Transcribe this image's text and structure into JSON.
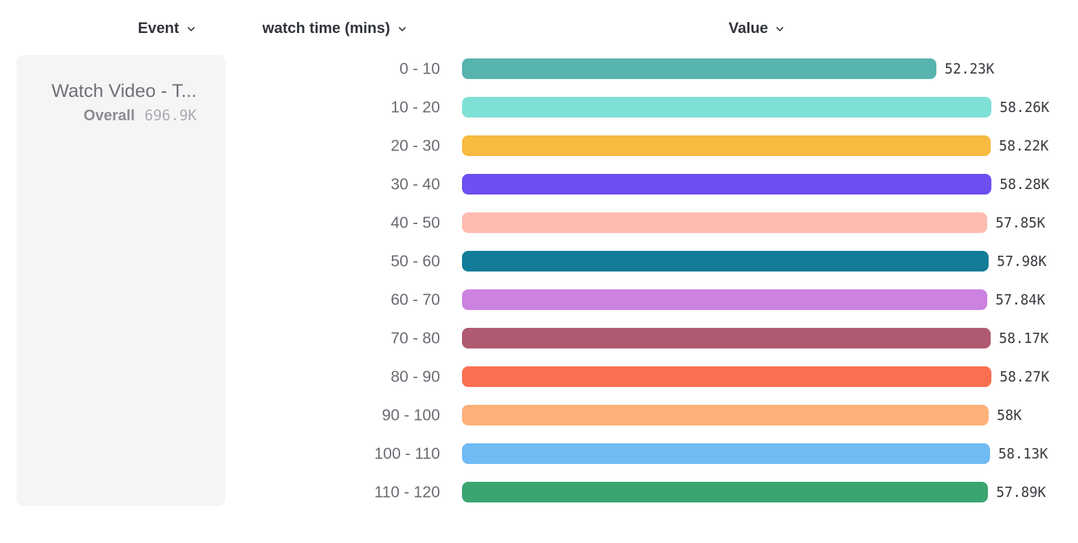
{
  "header": {
    "columns": [
      {
        "id": "event",
        "label": "Event",
        "icon": "chevron-down"
      },
      {
        "id": "breakdown",
        "label": "watch time (mins)",
        "icon": "chevron-down"
      },
      {
        "id": "value",
        "label": "Value",
        "icon": "chevron-down"
      }
    ]
  },
  "event_card": {
    "title": "Watch Video - T...",
    "overall_label": "Overall",
    "overall_value": "696.9K"
  },
  "chart_data": {
    "type": "bar",
    "orientation": "horizontal",
    "title": "",
    "xlabel": "Value",
    "ylabel": "watch time (mins)",
    "series_name": "Watch Video - T...",
    "overall_total": "696.9K",
    "unit": "K",
    "xlim": [
      0,
      58.28
    ],
    "grid": false,
    "legend": false,
    "categories": [
      "0 - 10",
      "10 - 20",
      "20 - 30",
      "30 - 40",
      "40 - 50",
      "50 - 60",
      "60 - 70",
      "70 - 80",
      "80 - 90",
      "90 - 100",
      "100 - 110",
      "110 - 120"
    ],
    "values": [
      52.23,
      58.26,
      58.22,
      58.28,
      57.85,
      57.98,
      57.84,
      58.17,
      58.27,
      58,
      58.13,
      57.89
    ],
    "value_labels": [
      "52.23K",
      "58.26K",
      "58.22K",
      "58.28K",
      "57.85K",
      "57.98K",
      "57.84K",
      "58.17K",
      "58.27K",
      "58K",
      "58.13K",
      "57.89K"
    ],
    "colors": [
      "#57B3AE",
      "#7FE0D5",
      "#F7BB40",
      "#6F4EF2",
      "#FDBCB0",
      "#127C99",
      "#CC82E0",
      "#AF5A70",
      "#FB6F51",
      "#FCB07A",
      "#6FBBF3",
      "#3BA572"
    ]
  }
}
